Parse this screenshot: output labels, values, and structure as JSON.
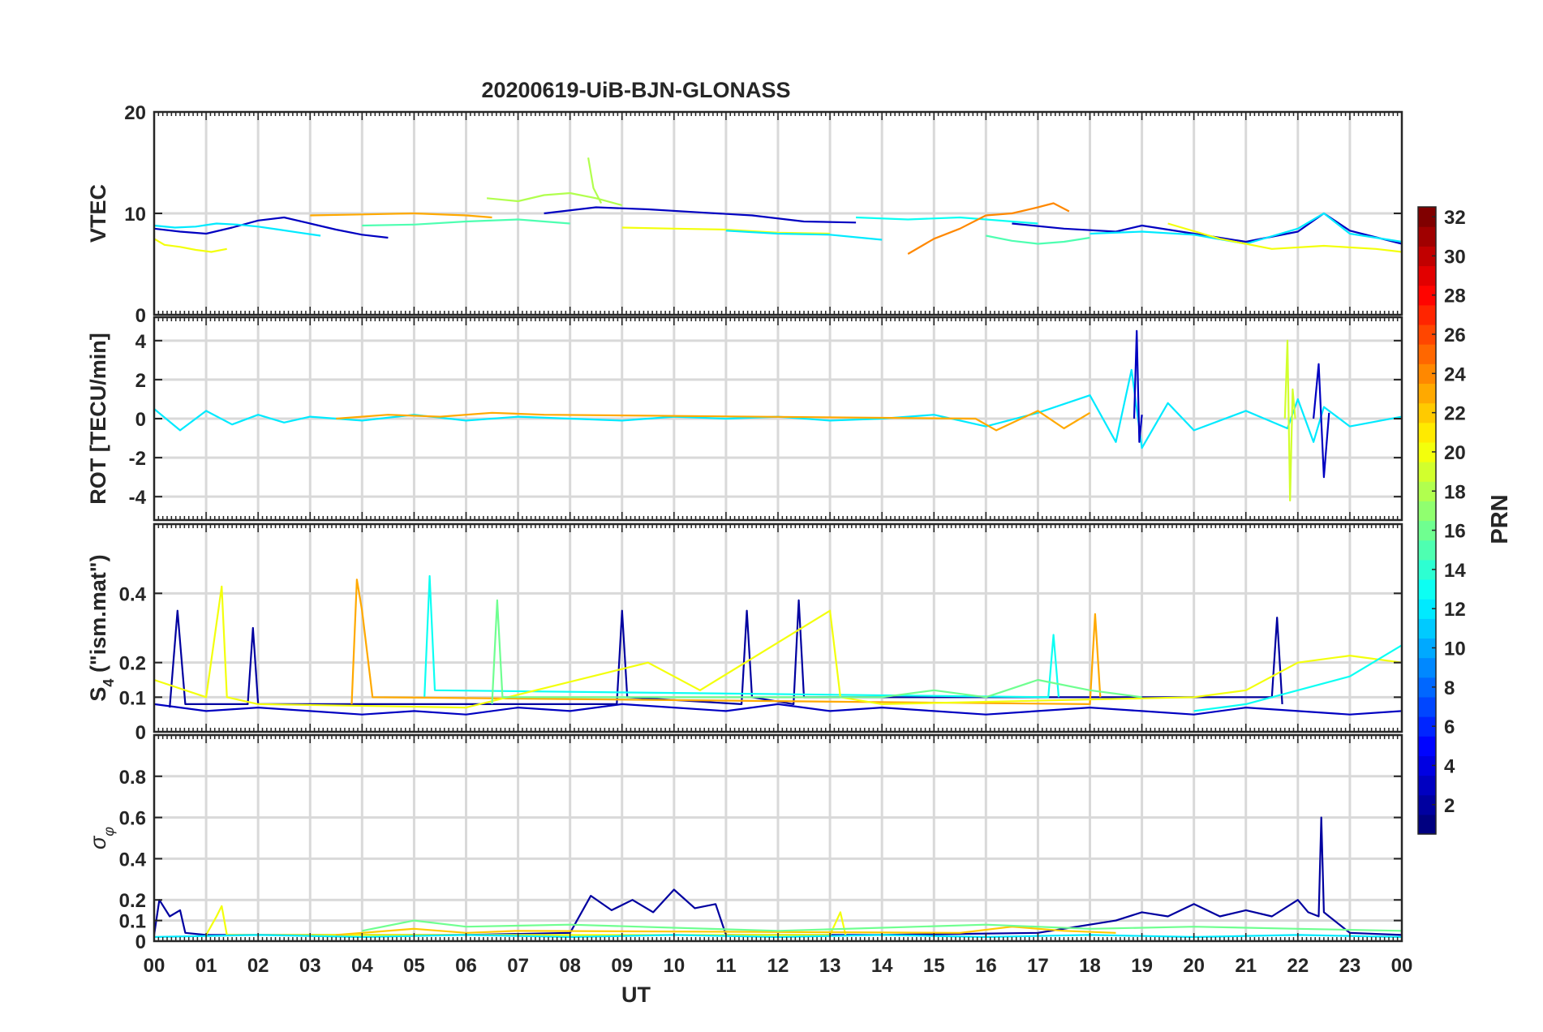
{
  "figure": {
    "title": "20200619-UiB-BJN-GLONASS",
    "xlabel": "UT"
  },
  "colorbar": {
    "label": "PRN",
    "min": 1,
    "max": 32,
    "colormap": "jet",
    "ticks": [
      "2",
      "4",
      "6",
      "8",
      "10",
      "12",
      "14",
      "16",
      "18",
      "20",
      "22",
      "24",
      "26",
      "28",
      "30",
      "32"
    ]
  },
  "chart_data": [
    {
      "type": "line",
      "panel": "VTEC",
      "title": "20200619-UiB-BJN-GLONASS",
      "ylabel": "VTEC",
      "xlabel": "",
      "xlim": [
        0,
        24
      ],
      "ylim": [
        0,
        20
      ],
      "yticks": [
        "0",
        "10",
        "20"
      ],
      "grid": true,
      "series": [
        {
          "prn": 3,
          "x": [
            0.0,
            0.5,
            1.0,
            1.5,
            2.0,
            2.5,
            3.0,
            3.5,
            4.0,
            4.5
          ],
          "y": [
            8.5,
            8.2,
            8.0,
            8.6,
            9.3,
            9.6,
            9.0,
            8.4,
            7.9,
            7.6
          ]
        },
        {
          "prn": 12,
          "x": [
            0.0,
            0.4,
            0.8,
            1.2,
            1.6,
            2.0,
            2.4,
            2.8,
            3.2
          ],
          "y": [
            8.8,
            8.6,
            8.7,
            9.0,
            8.9,
            8.7,
            8.4,
            8.1,
            7.8
          ]
        },
        {
          "prn": 20,
          "x": [
            0.0,
            0.2,
            0.5,
            0.8,
            1.1,
            1.4
          ],
          "y": [
            7.5,
            6.9,
            6.7,
            6.4,
            6.2,
            6.5
          ]
        },
        {
          "prn": 23,
          "x": [
            3.0,
            4.0,
            5.0,
            6.0,
            6.5
          ],
          "y": [
            9.8,
            9.9,
            10.0,
            9.8,
            9.6
          ]
        },
        {
          "prn": 15,
          "x": [
            4.0,
            5.0,
            6.0,
            7.0,
            8.0
          ],
          "y": [
            8.8,
            8.9,
            9.2,
            9.4,
            9.0
          ]
        },
        {
          "prn": 18,
          "x": [
            6.4,
            7.0,
            7.5,
            8.0,
            8.5,
            9.0
          ],
          "y": [
            11.5,
            11.2,
            11.8,
            12.0,
            11.5,
            10.8
          ]
        },
        {
          "prn": 18,
          "x": [
            8.35,
            8.45,
            8.6
          ],
          "y": [
            15.5,
            12.5,
            11.0
          ]
        },
        {
          "prn": 3,
          "x": [
            7.5,
            8.5,
            9.5,
            10.5,
            11.5,
            12.5,
            13.5
          ],
          "y": [
            10.0,
            10.6,
            10.4,
            10.1,
            9.8,
            9.2,
            9.1
          ]
        },
        {
          "prn": 20,
          "x": [
            9.0,
            10.0,
            11.0,
            12.0,
            13.0
          ],
          "y": [
            8.6,
            8.5,
            8.4,
            8.1,
            8.0
          ]
        },
        {
          "prn": 12,
          "x": [
            11.0,
            12.0,
            13.0,
            14.0
          ],
          "y": [
            8.3,
            8.0,
            7.9,
            7.4
          ]
        },
        {
          "prn": 13,
          "x": [
            13.5,
            14.5,
            15.5,
            16.5,
            17.0
          ],
          "y": [
            9.6,
            9.4,
            9.6,
            9.2,
            9.0
          ]
        },
        {
          "prn": 24,
          "x": [
            14.5,
            15.0,
            15.5,
            16.0,
            16.5,
            17.0,
            17.3,
            17.6
          ],
          "y": [
            6.0,
            7.5,
            8.5,
            9.8,
            10.0,
            10.6,
            11.0,
            10.2
          ]
        },
        {
          "prn": 15,
          "x": [
            16.0,
            16.5,
            17.0,
            17.5,
            18.0
          ],
          "y": [
            7.8,
            7.3,
            7.0,
            7.2,
            7.6
          ]
        },
        {
          "prn": 3,
          "x": [
            16.5,
            17.5,
            18.5,
            19.0,
            20.0,
            21.0,
            22.0,
            22.5,
            23.0,
            24.0
          ],
          "y": [
            9.0,
            8.5,
            8.2,
            8.8,
            8.0,
            7.2,
            8.2,
            10.0,
            8.3,
            7.0
          ]
        },
        {
          "prn": 12,
          "x": [
            18.0,
            19.0,
            20.0,
            21.0,
            22.0,
            22.5,
            23.0,
            24.0
          ],
          "y": [
            8.0,
            8.2,
            7.9,
            7.0,
            8.5,
            10.0,
            8.0,
            7.2
          ]
        },
        {
          "prn": 20,
          "x": [
            19.5,
            20.5,
            21.5,
            22.5,
            23.5,
            24.0
          ],
          "y": [
            9.0,
            7.5,
            6.5,
            6.8,
            6.5,
            6.2
          ]
        }
      ]
    },
    {
      "type": "line",
      "panel": "ROT",
      "ylabel": "ROT [TECU/min]",
      "xlabel": "",
      "xlim": [
        0,
        24
      ],
      "ylim": [
        -5.2,
        5.2
      ],
      "yticks": [
        "-4",
        "-2",
        "0",
        "2",
        "4"
      ],
      "grid": true,
      "series": [
        {
          "prn": 12,
          "x": [
            0.0,
            0.5,
            1.0,
            1.5,
            2.0,
            2.5,
            3.0,
            4.0,
            5.0,
            6.0,
            7.0,
            8.0,
            9.0,
            10.0,
            11.0,
            12.0,
            13.0,
            14.0,
            15.0,
            16.0,
            17.0,
            18.0,
            18.5,
            18.8,
            19.0,
            19.5,
            20.0,
            21.0,
            21.8,
            22.0,
            22.3,
            22.5,
            23.0,
            24.0
          ],
          "y": [
            0.5,
            -0.6,
            0.4,
            -0.3,
            0.2,
            -0.2,
            0.1,
            -0.1,
            0.2,
            -0.1,
            0.1,
            0.0,
            -0.1,
            0.1,
            0.0,
            0.1,
            -0.1,
            0.0,
            0.2,
            -0.4,
            0.3,
            1.2,
            -1.2,
            2.5,
            -1.5,
            0.8,
            -0.6,
            0.4,
            -0.5,
            1.0,
            -1.2,
            0.6,
            -0.4,
            0.1
          ]
        },
        {
          "prn": 19,
          "x": [
            21.75,
            21.8,
            21.85,
            21.9,
            21.95
          ],
          "y": [
            0.0,
            4.0,
            -4.2,
            1.5,
            0.0
          ]
        },
        {
          "prn": 3,
          "x": [
            18.85,
            18.9,
            18.95,
            19.0
          ],
          "y": [
            0.0,
            4.5,
            -1.2,
            0.2
          ]
        },
        {
          "prn": 3,
          "x": [
            22.3,
            22.4,
            22.5,
            22.6
          ],
          "y": [
            0.0,
            2.8,
            -3.0,
            0.3
          ]
        },
        {
          "prn": 23,
          "x": [
            3.5,
            4.5,
            5.5,
            6.5,
            7.5,
            15.8,
            16.2,
            17.0,
            17.5,
            18.0
          ],
          "y": [
            0.0,
            0.2,
            0.1,
            0.3,
            0.2,
            0.0,
            -0.6,
            0.4,
            -0.5,
            0.3
          ]
        }
      ]
    },
    {
      "type": "line",
      "panel": "S4",
      "ylabel": "S4 (\"ism.mat\")",
      "ylabel_main": "S",
      "ylabel_sub": "4",
      "ylabel_rest": " (\"ism.mat\")",
      "xlabel": "",
      "xlim": [
        0,
        24
      ],
      "ylim": [
        0,
        0.6
      ],
      "yticks": [
        "0",
        "0.1",
        "0.2",
        "0.4"
      ],
      "grid": true,
      "series": [
        {
          "prn": 3,
          "x": [
            0.0,
            1.0,
            2.0,
            3.0,
            4.0,
            5.0,
            6.0,
            7.0,
            8.0,
            9.0,
            10.0,
            11.0,
            12.0,
            13.0,
            14.0,
            15.0,
            16.0,
            17.0,
            18.0,
            19.0,
            20.0,
            21.0,
            22.0,
            23.0,
            24.0
          ],
          "y": [
            0.08,
            0.06,
            0.07,
            0.06,
            0.05,
            0.06,
            0.05,
            0.07,
            0.06,
            0.08,
            0.07,
            0.06,
            0.08,
            0.06,
            0.07,
            0.06,
            0.05,
            0.06,
            0.07,
            0.06,
            0.05,
            0.07,
            0.06,
            0.05,
            0.06
          ]
        },
        {
          "prn": 2,
          "x": [
            0.3,
            0.45,
            0.6,
            1.8,
            1.9,
            2.0,
            8.9,
            9.0,
            9.1,
            11.3,
            11.4,
            11.5,
            12.3,
            12.4,
            12.5,
            21.5,
            21.6,
            21.7
          ],
          "y": [
            0.07,
            0.35,
            0.08,
            0.08,
            0.3,
            0.08,
            0.08,
            0.35,
            0.1,
            0.08,
            0.35,
            0.1,
            0.08,
            0.38,
            0.1,
            0.1,
            0.33,
            0.08
          ]
        },
        {
          "prn": 13,
          "x": [
            5.2,
            5.3,
            5.4,
            17.2,
            17.3,
            17.4
          ],
          "y": [
            0.1,
            0.45,
            0.12,
            0.1,
            0.28,
            0.1
          ]
        },
        {
          "prn": 23,
          "x": [
            3.8,
            3.9,
            4.0,
            4.2,
            18.0,
            18.1,
            18.2
          ],
          "y": [
            0.08,
            0.44,
            0.35,
            0.1,
            0.08,
            0.34,
            0.1
          ]
        },
        {
          "prn": 20,
          "x": [
            0.0,
            1.0,
            1.3,
            1.4,
            2.0,
            6.0,
            9.5,
            10.5,
            13.0,
            13.2,
            14.0,
            20.0,
            21.0,
            22.0,
            23.0,
            24.0
          ],
          "y": [
            0.15,
            0.1,
            0.42,
            0.1,
            0.08,
            0.07,
            0.2,
            0.12,
            0.35,
            0.1,
            0.08,
            0.1,
            0.12,
            0.2,
            0.22,
            0.2
          ]
        },
        {
          "prn": 16,
          "x": [
            6.5,
            6.6,
            6.7,
            14.0,
            15.0,
            16.0,
            17.0,
            18.0,
            19.0
          ],
          "y": [
            0.08,
            0.38,
            0.1,
            0.1,
            0.12,
            0.1,
            0.15,
            0.12,
            0.1
          ]
        },
        {
          "prn": 13,
          "x": [
            20.0,
            21.0,
            22.0,
            23.0,
            24.0
          ],
          "y": [
            0.06,
            0.08,
            0.12,
            0.16,
            0.25
          ]
        }
      ]
    },
    {
      "type": "line",
      "panel": "sigma_phi",
      "ylabel": "σ φ",
      "ylabel_main": "σ",
      "ylabel_sub": "φ",
      "xlabel": "UT",
      "xlim": [
        0,
        24
      ],
      "ylim": [
        0,
        1.0
      ],
      "yticks": [
        "0",
        "0.1",
        "0.2",
        "0.4",
        "0.6",
        "0.8"
      ],
      "xticks": [
        "00",
        "01",
        "02",
        "03",
        "04",
        "05",
        "06",
        "07",
        "08",
        "09",
        "10",
        "11",
        "12",
        "13",
        "14",
        "15",
        "16",
        "17",
        "18",
        "19",
        "20",
        "21",
        "22",
        "23",
        "00"
      ],
      "grid": true,
      "series": [
        {
          "prn": 2,
          "x": [
            0.0,
            0.1,
            0.3,
            0.5,
            0.6,
            1.0,
            3.0,
            6.0,
            8.0,
            8.4,
            8.8,
            9.2,
            9.6,
            10.0,
            10.4,
            10.8,
            11.0,
            14.0,
            17.0,
            18.5,
            19.0,
            19.5,
            20.0,
            20.5,
            21.0,
            21.5,
            22.0,
            22.2,
            22.4,
            22.45,
            22.5,
            22.6,
            23.0,
            24.0
          ],
          "y": [
            0.03,
            0.2,
            0.12,
            0.15,
            0.04,
            0.03,
            0.03,
            0.03,
            0.04,
            0.22,
            0.15,
            0.2,
            0.14,
            0.25,
            0.16,
            0.18,
            0.03,
            0.03,
            0.04,
            0.1,
            0.14,
            0.12,
            0.18,
            0.12,
            0.15,
            0.12,
            0.2,
            0.14,
            0.12,
            0.6,
            0.14,
            0.12,
            0.04,
            0.03
          ]
        },
        {
          "prn": 20,
          "x": [
            1.0,
            1.2,
            1.3,
            1.4,
            13.0,
            13.2,
            13.3
          ],
          "y": [
            0.03,
            0.12,
            0.17,
            0.03,
            0.03,
            0.14,
            0.03
          ]
        },
        {
          "prn": 22,
          "x": [
            3.5,
            5.0,
            6.0,
            7.0,
            15.5,
            16.5,
            17.5,
            18.5
          ],
          "y": [
            0.03,
            0.06,
            0.04,
            0.05,
            0.04,
            0.07,
            0.05,
            0.04
          ]
        },
        {
          "prn": 16,
          "x": [
            4.0,
            5.0,
            6.0,
            8.0,
            12.0,
            16.0,
            18.0,
            20.0,
            22.0,
            24.0
          ],
          "y": [
            0.05,
            0.1,
            0.07,
            0.08,
            0.05,
            0.08,
            0.06,
            0.07,
            0.06,
            0.05
          ]
        },
        {
          "prn": 12,
          "x": [
            0.0,
            2.0,
            4.0,
            6.0,
            8.0,
            10.0,
            12.0,
            14.0,
            16.0,
            18.0,
            20.0,
            22.0,
            24.0
          ],
          "y": [
            0.02,
            0.03,
            0.02,
            0.03,
            0.02,
            0.03,
            0.02,
            0.03,
            0.02,
            0.03,
            0.02,
            0.03,
            0.02
          ]
        }
      ]
    }
  ]
}
